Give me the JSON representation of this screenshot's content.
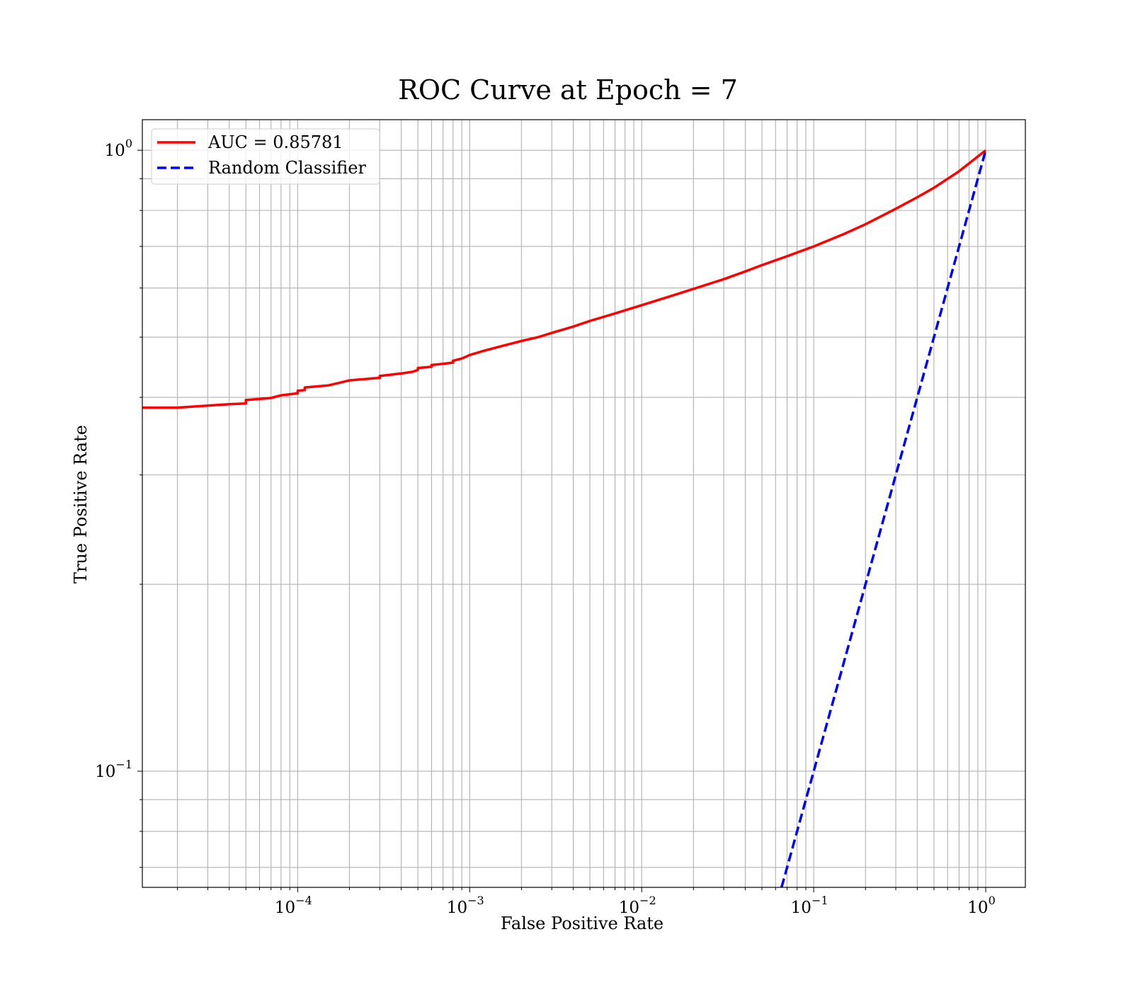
{
  "chart_data": {
    "type": "line",
    "title": "ROC Curve at Epoch = 7",
    "xlabel": "False Positive Rate",
    "ylabel": "True Positive Rate",
    "xscale": "log",
    "yscale": "log",
    "xlim": [
      1.25e-05,
      1.7
    ],
    "ylim": [
      0.065,
      1.12
    ],
    "grid": "both",
    "legend": "upper-left",
    "x_ticks": [
      {
        "base": "10",
        "exp": "−4",
        "value": 0.0001
      },
      {
        "base": "10",
        "exp": "−3",
        "value": 0.001
      },
      {
        "base": "10",
        "exp": "−2",
        "value": 0.01
      },
      {
        "base": "10",
        "exp": "−1",
        "value": 0.1
      },
      {
        "base": "10",
        "exp": "0",
        "value": 1
      }
    ],
    "y_ticks": [
      {
        "base": "10",
        "exp": "−1",
        "value": 0.1
      },
      {
        "base": "10",
        "exp": "0",
        "value": 1
      }
    ],
    "series": [
      {
        "name": "AUC = 0.85781",
        "color": "#ff0000",
        "style": "solid",
        "x": [
          1.25e-05,
          2e-05,
          3e-05,
          4e-05,
          5e-05,
          5e-05,
          7e-05,
          8e-05,
          0.0001,
          0.0001,
          0.00011,
          0.00011,
          0.00015,
          0.00018,
          0.0002,
          0.0003,
          0.0003,
          0.0004,
          0.00047,
          0.0005,
          0.0005,
          0.0006,
          0.0006,
          0.0007,
          0.0008,
          0.0008,
          0.0009,
          0.001,
          0.0012,
          0.0015,
          0.002,
          0.0025,
          0.003,
          0.004,
          0.005,
          0.007,
          0.01,
          0.015,
          0.02,
          0.03,
          0.04,
          0.05,
          0.07,
          0.1,
          0.15,
          0.2,
          0.3,
          0.4,
          0.5,
          0.7,
          1.0
        ],
        "y": [
          0.385,
          0.385,
          0.388,
          0.39,
          0.391,
          0.396,
          0.399,
          0.403,
          0.406,
          0.41,
          0.411,
          0.415,
          0.418,
          0.423,
          0.426,
          0.43,
          0.433,
          0.437,
          0.44,
          0.443,
          0.446,
          0.448,
          0.451,
          0.453,
          0.455,
          0.458,
          0.462,
          0.468,
          0.475,
          0.483,
          0.493,
          0.5,
          0.508,
          0.52,
          0.531,
          0.546,
          0.563,
          0.583,
          0.598,
          0.62,
          0.638,
          0.653,
          0.675,
          0.7,
          0.733,
          0.76,
          0.805,
          0.84,
          0.87,
          0.925,
          1.0
        ]
      },
      {
        "name": "Random Classifier",
        "color": "#0000ff",
        "style": "dashed",
        "x": [
          0.065,
          1.0
        ],
        "y": [
          0.065,
          1.0
        ]
      }
    ]
  }
}
